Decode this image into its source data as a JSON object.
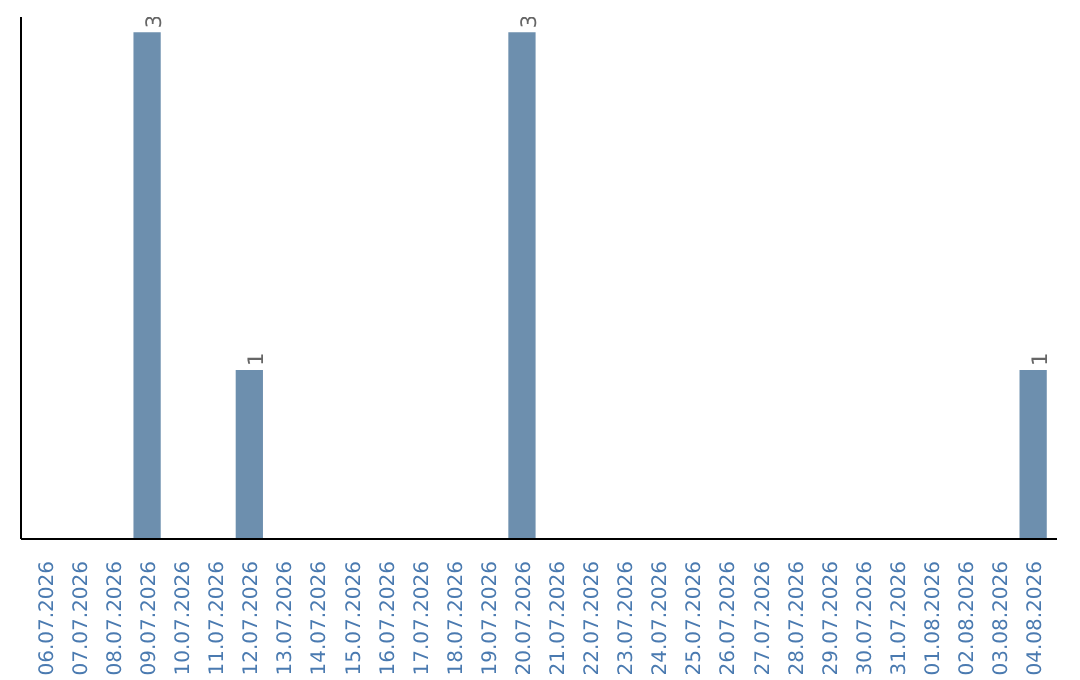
{
  "chart_data": {
    "type": "bar",
    "categories": [
      "06.07.2026",
      "07.07.2026",
      "08.07.2026",
      "09.07.2026",
      "10.07.2026",
      "11.07.2026",
      "12.07.2026",
      "13.07.2026",
      "14.07.2026",
      "15.07.2026",
      "16.07.2026",
      "17.07.2026",
      "18.07.2026",
      "19.07.2026",
      "20.07.2026",
      "21.07.2026",
      "22.07.2026",
      "23.07.2026",
      "24.07.2026",
      "25.07.2026",
      "26.07.2026",
      "27.07.2026",
      "28.07.2026",
      "29.07.2026",
      "30.07.2026",
      "31.07.2026",
      "01.08.2026",
      "02.08.2026",
      "03.08.2026",
      "04.08.2026"
    ],
    "values": [
      0,
      0,
      0,
      3,
      0,
      0,
      1,
      0,
      0,
      0,
      0,
      0,
      0,
      0,
      3,
      0,
      0,
      0,
      0,
      0,
      0,
      0,
      0,
      0,
      0,
      0,
      0,
      0,
      0,
      1
    ],
    "value_labels": [
      null,
      null,
      null,
      "3",
      null,
      null,
      "1",
      null,
      null,
      null,
      null,
      null,
      null,
      null,
      "3",
      null,
      null,
      null,
      null,
      null,
      null,
      null,
      null,
      null,
      null,
      null,
      null,
      null,
      null,
      "1"
    ],
    "color": "#6d8fae",
    "grid": false,
    "tick_labels": "x"
  }
}
